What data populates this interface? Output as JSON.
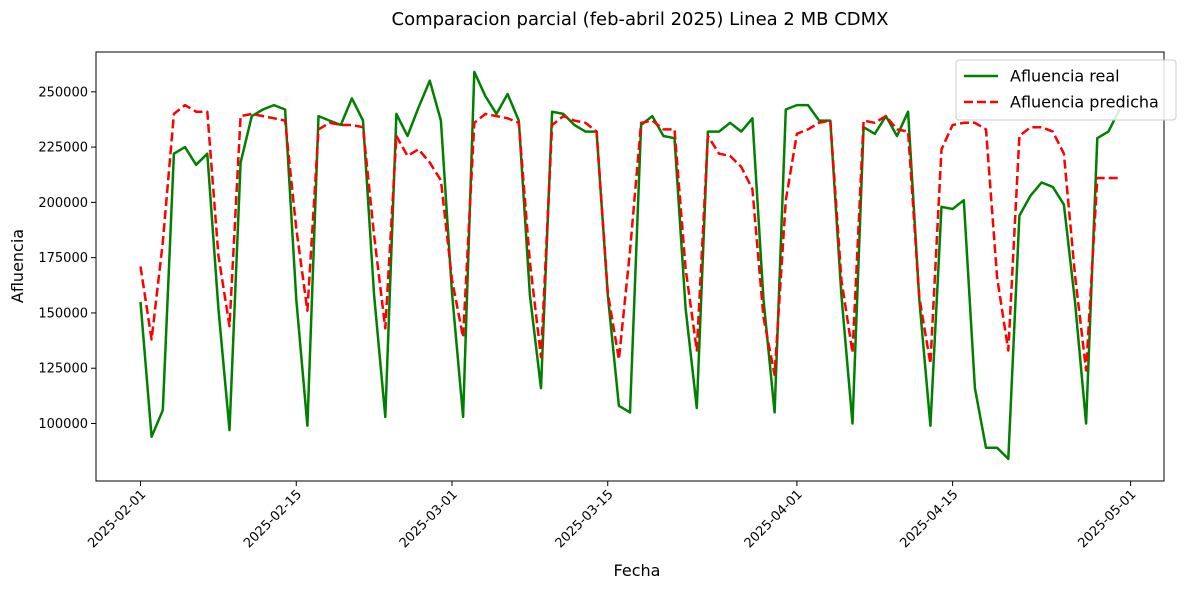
{
  "chart_data": {
    "type": "line",
    "title": "Comparacion parcial (feb-abril 2025) Linea 2 MB CDMX",
    "xlabel": "Fecha",
    "ylabel": "Afluencia",
    "x_start": "2025-02-01",
    "x_ticks": [
      "2025-02-01",
      "2025-02-15",
      "2025-03-01",
      "2025-03-15",
      "2025-04-01",
      "2025-04-15",
      "2025-05-01"
    ],
    "y_ticks": [
      100000,
      125000,
      150000,
      175000,
      200000,
      225000,
      250000
    ],
    "xlim": [
      "2025-01-28",
      "2025-05-04"
    ],
    "ylim": [
      74000,
      268000
    ],
    "grid": false,
    "legend_position": "top-right",
    "series": [
      {
        "name": "Afluencia real",
        "color": "#008000",
        "style": "solid",
        "values": [
          155000,
          94000,
          106000,
          222000,
          225000,
          217000,
          222000,
          152000,
          97000,
          218000,
          239000,
          242000,
          244000,
          242000,
          156000,
          99000,
          239000,
          237000,
          235000,
          247000,
          237000,
          158000,
          103000,
          240000,
          230000,
          243000,
          255000,
          237000,
          159000,
          103000,
          259000,
          248000,
          240000,
          249000,
          237000,
          158000,
          116000,
          241000,
          240000,
          235000,
          232000,
          232000,
          158000,
          108000,
          105000,
          235000,
          239000,
          230000,
          229000,
          152000,
          107000,
          232000,
          232000,
          236000,
          232000,
          238000,
          156000,
          105000,
          242000,
          244000,
          244000,
          237000,
          237000,
          158000,
          100000,
          234000,
          231000,
          239000,
          230000,
          241000,
          156000,
          99000,
          198000,
          197000,
          201000,
          116000,
          89000,
          89000,
          84000,
          194000,
          203000,
          209000,
          207000,
          199000,
          155000,
          100000,
          229000,
          232000,
          242000
        ]
      },
      {
        "name": "Afluencia predicha",
        "color": "#ff0000",
        "style": "dashed",
        "values": [
          171000,
          138000,
          182000,
          240000,
          244000,
          241000,
          241000,
          176000,
          144000,
          239000,
          240000,
          239000,
          238000,
          237000,
          188000,
          151000,
          233000,
          236000,
          235000,
          235000,
          234000,
          185000,
          143000,
          230000,
          221000,
          224000,
          218000,
          210000,
          165000,
          139000,
          236000,
          240000,
          239000,
          238000,
          236000,
          173000,
          130000,
          235000,
          239000,
          237000,
          236000,
          232000,
          159000,
          129000,
          178000,
          236000,
          237000,
          233000,
          233000,
          170000,
          133000,
          230000,
          222000,
          221000,
          216000,
          206000,
          148000,
          122000,
          201000,
          231000,
          233000,
          236000,
          237000,
          165000,
          132000,
          237000,
          236000,
          239000,
          233000,
          232000,
          157000,
          127000,
          224000,
          235000,
          236000,
          236000,
          233000,
          166000,
          133000,
          230000,
          234000,
          234000,
          232000,
          222000,
          167000,
          124000,
          211000,
          211000,
          211000
        ]
      }
    ]
  }
}
